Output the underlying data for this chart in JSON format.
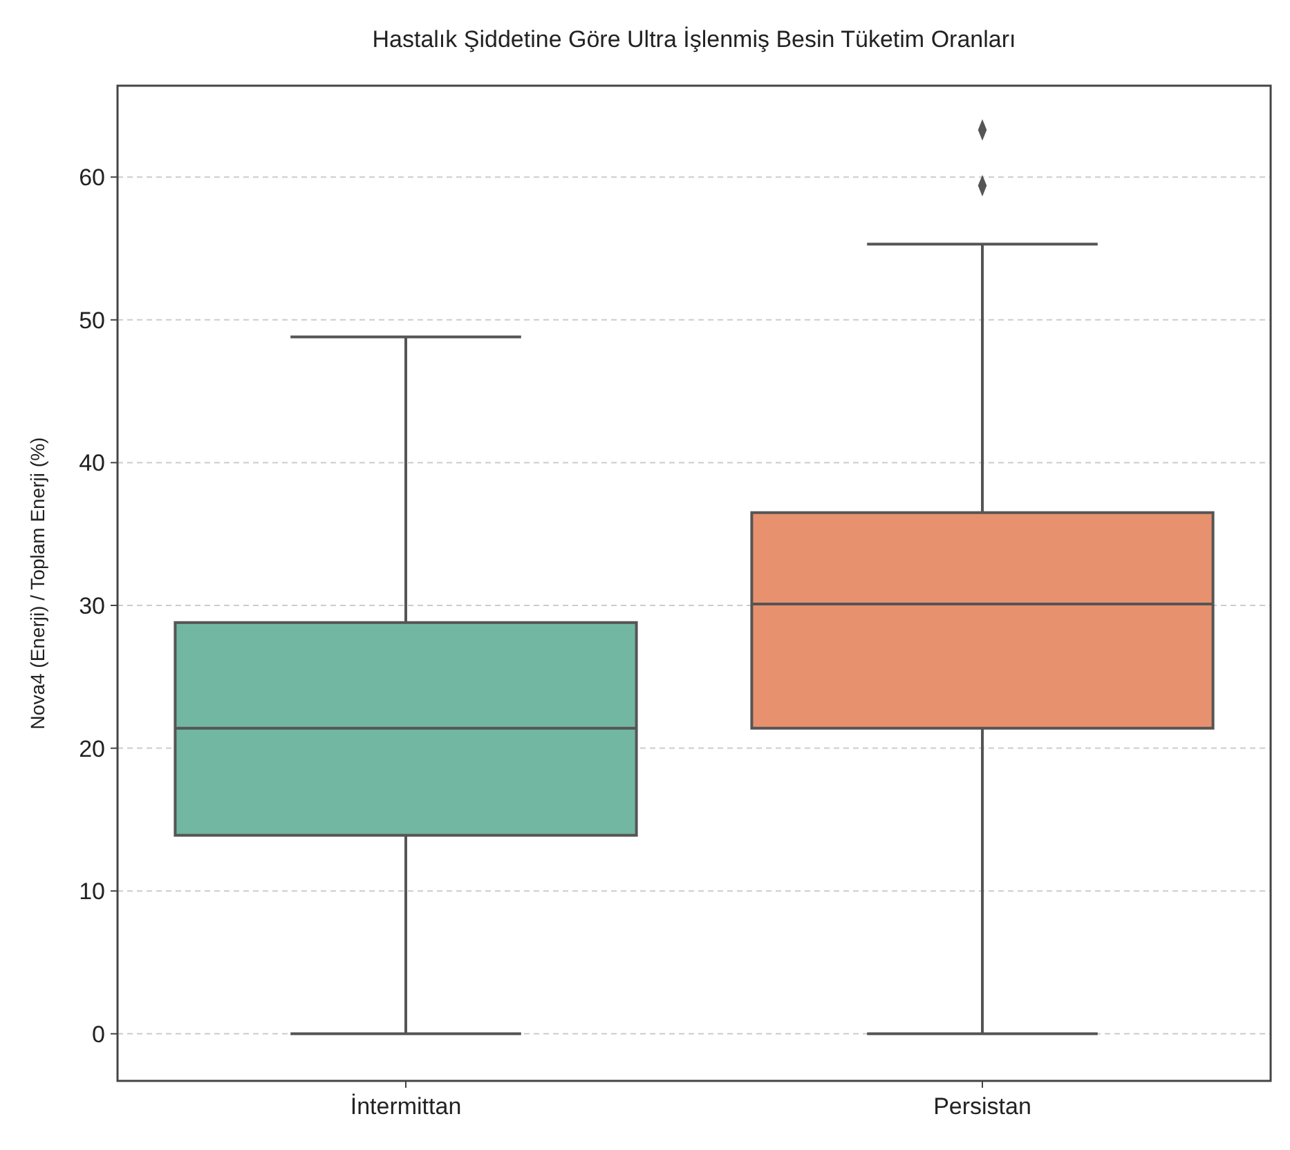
{
  "chart_data": {
    "type": "box",
    "title": "Hastalık Şiddetine Göre Ultra İşlenmiş Besin Tüketim Oranları",
    "ylabel": "Nova4 (Enerji) / Toplam Enerji (%)",
    "categories": [
      "İntermittan",
      "Persistan"
    ],
    "colors": [
      "#72b7a1",
      "#e8916e"
    ],
    "boxes": [
      {
        "low": 0,
        "q1": 13.9,
        "median": 21.4,
        "q3": 28.8,
        "high": 48.8
      },
      {
        "low": 0,
        "q1": 21.4,
        "median": 30.1,
        "q3": 36.5,
        "high": 55.3,
        "outliers": [
          59.4,
          63.3
        ]
      }
    ],
    "ylim": [
      -3.3,
      66.4
    ],
    "yticks": [
      0,
      10,
      20,
      30,
      40,
      50,
      60
    ],
    "grid": "y",
    "marker": "diamond"
  }
}
